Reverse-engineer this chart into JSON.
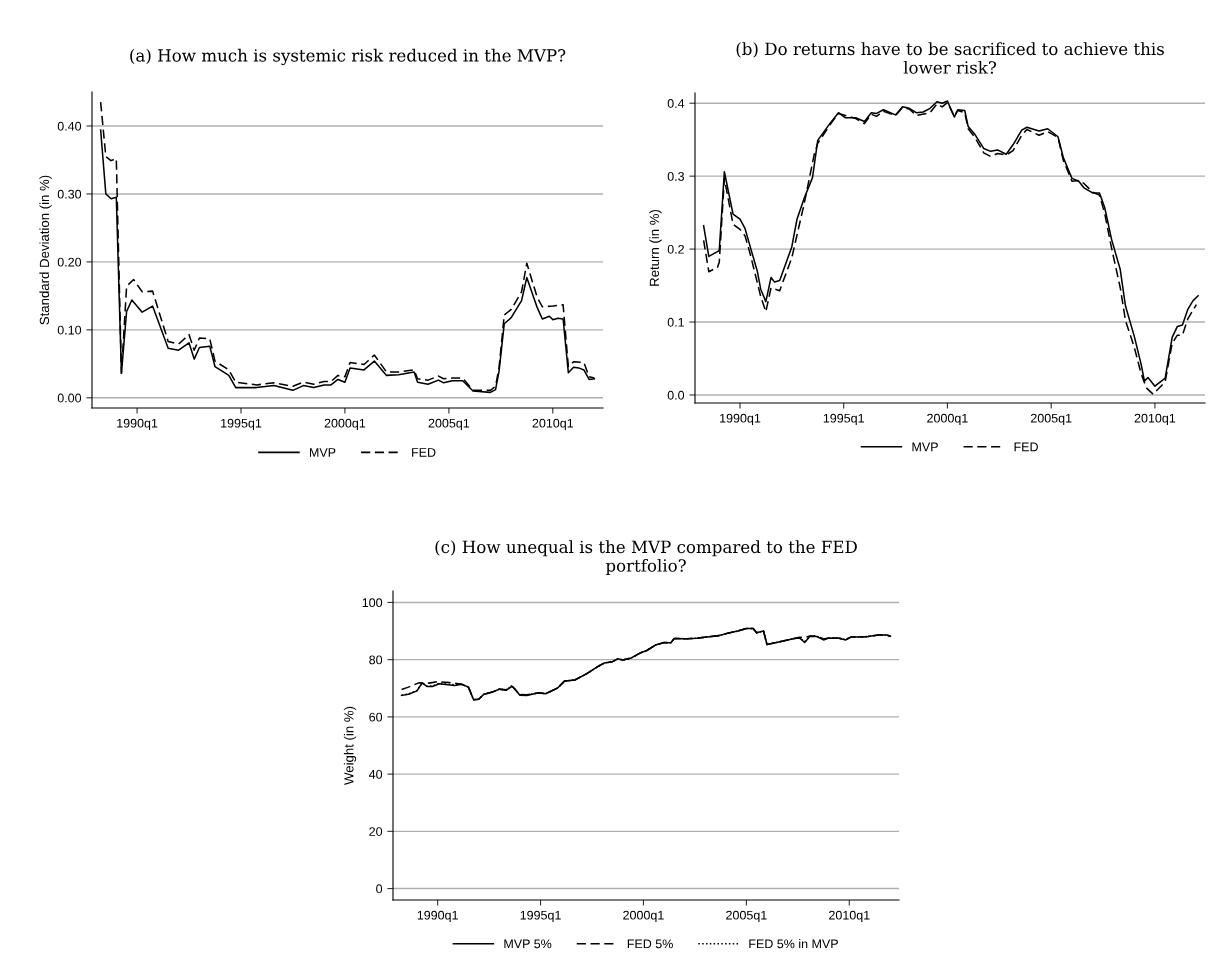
{
  "chart_data": [
    {
      "type": "line",
      "title": "(a) How much is systemic risk reduced in the MVP?",
      "ylabel": "Standard Deviation (in %)",
      "xlim": [
        "1987-11",
        "2012-06"
      ],
      "xticks": [
        {
          "value": "1990-01",
          "label": "1990q1"
        },
        {
          "value": "1995-01",
          "label": "1995q1"
        },
        {
          "value": "2000-01",
          "label": "2000q1"
        },
        {
          "value": "2005-01",
          "label": "2005q1"
        },
        {
          "value": "2010-01",
          "label": "2010q1"
        }
      ],
      "ylim": [
        -0.015,
        0.45
      ],
      "yticks": [
        {
          "value": 0,
          "label": "0.00"
        },
        {
          "value": 0.1,
          "label": "0.10"
        },
        {
          "value": 0.2,
          "label": "0.20"
        },
        {
          "value": 0.3,
          "label": "0.30"
        },
        {
          "value": 0.4,
          "label": "0.40"
        }
      ],
      "grid": "y",
      "legend": "bottom",
      "series": [
        {
          "name": "MVP",
          "color": "#000000",
          "line_style": "solid",
          "x": [
            "1988-04",
            "1988-07",
            "1988-10",
            "1989-01",
            "1989-04",
            "1989-07",
            "1989-10",
            "1990-04",
            "1990-10",
            "1991-07",
            "1992-01",
            "1992-07",
            "1992-10",
            "1993-01",
            "1993-07",
            "1993-10",
            "1994-06",
            "1994-10",
            "1995-10",
            "1996-08",
            "1997-07",
            "1998-01",
            "1998-07",
            "1999-01",
            "1999-05",
            "1999-09",
            "2000-01",
            "2000-04",
            "2000-12",
            "2001-06",
            "2002-01",
            "2002-08",
            "2003-05",
            "2003-07",
            "2004-01",
            "2004-07",
            "2004-10",
            "2005-03",
            "2005-09",
            "2006-03",
            "2007-01",
            "2007-04",
            "2007-06",
            "2007-09",
            "2008-01",
            "2008-07",
            "2008-10",
            "2009-04",
            "2009-07",
            "2009-11",
            "2010-01",
            "2010-04",
            "2010-07",
            "2010-10",
            "2011-01",
            "2011-04",
            "2011-07",
            "2011-10",
            "2012-01"
          ],
          "values": [
            0.394,
            0.3,
            0.293,
            0.295,
            0.036,
            0.127,
            0.144,
            0.126,
            0.135,
            0.073,
            0.07,
            0.081,
            0.057,
            0.074,
            0.076,
            0.046,
            0.033,
            0.015,
            0.015,
            0.018,
            0.011,
            0.018,
            0.015,
            0.019,
            0.019,
            0.027,
            0.023,
            0.044,
            0.041,
            0.054,
            0.033,
            0.034,
            0.038,
            0.023,
            0.02,
            0.026,
            0.022,
            0.025,
            0.025,
            0.01,
            0.008,
            0.012,
            0.039,
            0.109,
            0.118,
            0.143,
            0.177,
            0.133,
            0.116,
            0.12,
            0.115,
            0.117,
            0.116,
            0.037,
            0.045,
            0.044,
            0.041,
            0.027,
            0.028
          ]
        },
        {
          "name": "FED",
          "color": "#000000",
          "line_style": "dashed",
          "x": [
            "1988-04",
            "1988-07",
            "1988-10",
            "1989-01",
            "1989-04",
            "1989-07",
            "1989-11",
            "1990-04",
            "1990-10",
            "1991-07",
            "1992-01",
            "1992-07",
            "1992-10",
            "1993-01",
            "1993-07",
            "1993-10",
            "1994-06",
            "1994-10",
            "1995-10",
            "1996-08",
            "1997-07",
            "1998-01",
            "1998-07",
            "1999-01",
            "1999-05",
            "1999-09",
            "2000-01",
            "2000-04",
            "2000-12",
            "2001-06",
            "2002-01",
            "2002-08",
            "2003-05",
            "2003-07",
            "2004-01",
            "2004-07",
            "2004-10",
            "2005-03",
            "2005-09",
            "2006-03",
            "2007-01",
            "2007-04",
            "2007-06",
            "2007-09",
            "2008-01",
            "2008-07",
            "2008-10",
            "2009-04",
            "2009-07",
            "2010-01",
            "2010-07",
            "2010-10",
            "2011-01",
            "2011-07",
            "2011-10",
            "2012-01"
          ],
          "values": [
            0.435,
            0.355,
            0.349,
            0.352,
            0.036,
            0.164,
            0.174,
            0.156,
            0.157,
            0.083,
            0.079,
            0.093,
            0.07,
            0.088,
            0.087,
            0.054,
            0.041,
            0.023,
            0.019,
            0.022,
            0.017,
            0.023,
            0.02,
            0.024,
            0.024,
            0.033,
            0.031,
            0.052,
            0.049,
            0.063,
            0.038,
            0.038,
            0.041,
            0.028,
            0.026,
            0.032,
            0.028,
            0.029,
            0.029,
            0.011,
            0.011,
            0.017,
            0.044,
            0.122,
            0.13,
            0.156,
            0.198,
            0.148,
            0.134,
            0.135,
            0.137,
            0.046,
            0.053,
            0.052,
            0.031,
            0.029
          ]
        }
      ]
    },
    {
      "type": "line",
      "title": "(b) Do returns have to be sacrificed to achieve this\nlower risk?",
      "ylabel": "Return (in %)",
      "xlim": [
        "1987-11",
        "2012-06"
      ],
      "xticks": [
        {
          "value": "1990-01",
          "label": "1990q1"
        },
        {
          "value": "1995-01",
          "label": "1995q1"
        },
        {
          "value": "2000-01",
          "label": "2000q1"
        },
        {
          "value": "2005-01",
          "label": "2005q1"
        },
        {
          "value": "2010-01",
          "label": "2010q1"
        }
      ],
      "ylim": [
        -0.011,
        0.414
      ],
      "yticks": [
        {
          "value": 0,
          "label": "0.0"
        },
        0.1,
        0.2,
        0.3,
        0.4
      ],
      "grid": "y",
      "legend": "bottom",
      "series": [
        {
          "name": "MVP",
          "color": "#000000",
          "line_style": "solid",
          "x": [
            "1988-04",
            "1988-07",
            "1989-01",
            "1989-04",
            "1989-09",
            "1990-01",
            "1990-04",
            "1990-07",
            "1990-11",
            "1991-01",
            "1991-04",
            "1991-07",
            "1991-09",
            "1991-12",
            "1992-07",
            "1992-10",
            "1993-02",
            "1993-07",
            "1993-10",
            "1994-05",
            "1994-10",
            "1995-02",
            "1995-08",
            "1996-01",
            "1996-05",
            "1996-08",
            "1996-12",
            "1997-07",
            "1997-11",
            "1998-03",
            "1998-07",
            "1998-11",
            "1999-03",
            "1999-07",
            "1999-10",
            "2000-01",
            "2000-05",
            "2000-07",
            "2000-11",
            "2001-01",
            "2001-05",
            "2001-10",
            "2002-02",
            "2002-06",
            "2002-11",
            "2003-03",
            "2003-08",
            "2003-11",
            "2004-06",
            "2004-11",
            "2005-05",
            "2005-08",
            "2006-01",
            "2006-05",
            "2006-08",
            "2007-01",
            "2007-05",
            "2007-08",
            "2007-12",
            "2008-05",
            "2008-08",
            "2009-01",
            "2009-05",
            "2009-07",
            "2009-09",
            "2010-01",
            "2010-07",
            "2010-11",
            "2011-02",
            "2011-05",
            "2011-08",
            "2011-11",
            "2012-02"
          ],
          "values": [
            0.232,
            0.19,
            0.198,
            0.306,
            0.248,
            0.241,
            0.228,
            0.203,
            0.17,
            0.145,
            0.128,
            0.161,
            0.155,
            0.157,
            0.203,
            0.241,
            0.269,
            0.298,
            0.349,
            0.372,
            0.387,
            0.38,
            0.38,
            0.375,
            0.387,
            0.386,
            0.391,
            0.384,
            0.395,
            0.393,
            0.387,
            0.388,
            0.393,
            0.402,
            0.4,
            0.403,
            0.381,
            0.391,
            0.39,
            0.368,
            0.357,
            0.338,
            0.334,
            0.336,
            0.33,
            0.343,
            0.363,
            0.367,
            0.362,
            0.365,
            0.354,
            0.326,
            0.297,
            0.293,
            0.284,
            0.277,
            0.277,
            0.257,
            0.213,
            0.172,
            0.122,
            0.081,
            0.043,
            0.019,
            0.024,
            0.012,
            0.023,
            0.079,
            0.094,
            0.096,
            0.117,
            0.129,
            0.136
          ]
        },
        {
          "name": "FED",
          "color": "#000000",
          "line_style": "dashed",
          "x": [
            "1988-04",
            "1988-07",
            "1988-12",
            "1989-01",
            "1989-04",
            "1989-09",
            "1990-01",
            "1990-04",
            "1990-07",
            "1991-01",
            "1991-04",
            "1991-07",
            "1991-12",
            "1992-07",
            "1993-02",
            "1993-08",
            "1993-10",
            "1994-05",
            "1994-10",
            "1995-08",
            "1996-01",
            "1996-05",
            "1996-08",
            "1996-12",
            "1997-07",
            "1997-11",
            "1998-03",
            "1998-07",
            "1999-03",
            "1999-07",
            "1999-10",
            "2000-01",
            "2000-05",
            "2000-07",
            "2000-11",
            "2001-01",
            "2001-05",
            "2001-10",
            "2002-02",
            "2002-06",
            "2002-11",
            "2003-03",
            "2003-08",
            "2003-11",
            "2004-06",
            "2004-11",
            "2005-05",
            "2005-08",
            "2006-01",
            "2006-05",
            "2006-08",
            "2007-01",
            "2007-05",
            "2007-08",
            "2007-12",
            "2008-05",
            "2008-08",
            "2009-01",
            "2009-05",
            "2009-08",
            "2009-12",
            "2010-07",
            "2010-11",
            "2011-02",
            "2011-05",
            "2011-08",
            "2012-01"
          ],
          "values": [
            0.212,
            0.169,
            0.175,
            0.182,
            0.297,
            0.234,
            0.227,
            0.218,
            0.193,
            0.135,
            0.114,
            0.147,
            0.143,
            0.188,
            0.261,
            0.33,
            0.345,
            0.37,
            0.386,
            0.379,
            0.372,
            0.385,
            0.382,
            0.389,
            0.383,
            0.394,
            0.392,
            0.383,
            0.387,
            0.399,
            0.395,
            0.401,
            0.382,
            0.39,
            0.387,
            0.365,
            0.353,
            0.332,
            0.327,
            0.331,
            0.329,
            0.335,
            0.356,
            0.364,
            0.356,
            0.361,
            0.353,
            0.322,
            0.293,
            0.294,
            0.29,
            0.278,
            0.274,
            0.249,
            0.201,
            0.147,
            0.102,
            0.066,
            0.03,
            0.01,
            0.001,
            0.018,
            0.071,
            0.082,
            0.082,
            0.104,
            0.124
          ]
        }
      ]
    },
    {
      "type": "line",
      "title": "(c) How unequal is the MVP compared to the FED\nportfolio?",
      "ylabel": "Weight (in %)",
      "xlim": [
        "1987-11",
        "2012-06"
      ],
      "xticks": [
        {
          "value": "1990-01",
          "label": "1990q1"
        },
        {
          "value": "1995-01",
          "label": "1995q1"
        },
        {
          "value": "2000-01",
          "label": "2000q1"
        },
        {
          "value": "2005-01",
          "label": "2005q1"
        },
        {
          "value": "2010-01",
          "label": "2010q1"
        }
      ],
      "ylim": [
        -4,
        104
      ],
      "yticks": [
        0,
        20,
        40,
        60,
        80,
        100
      ],
      "grid": "y",
      "legend": "bottom",
      "series": [
        {
          "name": "MVP 5%",
          "color": "#000000",
          "line_style": "solid",
          "x": [
            "1988-04",
            "1988-08",
            "1989-01",
            "1989-04",
            "1989-07",
            "1989-10",
            "1990-02",
            "1990-11",
            "1991-03",
            "1991-07",
            "1991-10",
            "1992-01",
            "1992-04",
            "1992-09",
            "1993-01",
            "1993-05",
            "1993-08",
            "1993-09",
            "1994-01",
            "1994-05",
            "1994-12",
            "1995-04",
            "1995-11",
            "1996-03",
            "1996-09",
            "1997-04",
            "1997-11",
            "1998-02",
            "1998-07",
            "1998-10",
            "1999-01",
            "1999-06",
            "1999-11",
            "2000-03",
            "2000-08",
            "2001-01",
            "2001-05",
            "2001-07",
            "2002-02",
            "2002-08",
            "2003-02",
            "2003-09",
            "2004-02",
            "2004-08",
            "2005-01",
            "2005-05",
            "2005-07",
            "2005-11",
            "2006-01",
            "2006-08",
            "2007-05",
            "2007-08",
            "2007-11",
            "2008-02",
            "2008-06",
            "2008-10",
            "2009-01",
            "2009-07",
            "2009-11",
            "2010-02",
            "2010-06",
            "2010-12",
            "2011-06",
            "2011-11",
            "2012-01"
          ],
          "values": [
            67.5,
            67.9,
            69.1,
            71.9,
            70.6,
            70.6,
            71.6,
            71.0,
            71.4,
            70.4,
            66.0,
            66.2,
            67.9,
            68.7,
            69.7,
            69.3,
            70.6,
            70.4,
            67.6,
            67.5,
            68.4,
            68.1,
            70.1,
            72.5,
            72.9,
            75.1,
            77.8,
            78.8,
            79.3,
            80.3,
            79.9,
            80.6,
            82.3,
            83.2,
            85.1,
            86.0,
            85.9,
            87.4,
            87.3,
            87.5,
            87.9,
            88.4,
            89.2,
            90.0,
            90.9,
            90.9,
            89.4,
            90.0,
            85.3,
            86.2,
            87.4,
            87.6,
            86.0,
            88.1,
            88.1,
            86.9,
            87.6,
            87.5,
            86.9,
            87.9,
            87.9,
            88.1,
            88.6,
            88.6,
            88.2
          ]
        },
        {
          "name": "FED 5%",
          "color": "#000000",
          "line_style": "dashed",
          "x": [
            "1988-04",
            "1988-08",
            "1989-02",
            "1989-08",
            "1990-01",
            "1990-08",
            "1991-03",
            "1991-07",
            "1991-10",
            "1992-01",
            "1992-04",
            "1992-09",
            "1993-01",
            "1993-05",
            "1993-08",
            "1993-09",
            "1994-01",
            "1994-05",
            "1994-12",
            "1995-04",
            "1995-11",
            "1996-03",
            "1996-09",
            "1997-04",
            "1997-11",
            "1998-02",
            "1998-07",
            "1998-10",
            "1999-01",
            "1999-06",
            "1999-11",
            "2000-03",
            "2000-08",
            "2001-01",
            "2001-05",
            "2001-07",
            "2002-02",
            "2002-08",
            "2003-02",
            "2003-09",
            "2004-02",
            "2004-08",
            "2005-01",
            "2005-05",
            "2005-07",
            "2005-11",
            "2006-01",
            "2006-08",
            "2007-05",
            "2007-08",
            "2007-11",
            "2008-02",
            "2008-06",
            "2008-10",
            "2009-01",
            "2009-07",
            "2009-11",
            "2010-02",
            "2010-06",
            "2010-12",
            "2011-06",
            "2011-11",
            "2012-01"
          ],
          "values": [
            69.6,
            70.4,
            71.9,
            71.8,
            72.3,
            72.0,
            71.4,
            70.4,
            66.0,
            66.2,
            67.9,
            68.7,
            69.7,
            69.5,
            70.8,
            70.4,
            67.8,
            67.7,
            68.4,
            68.1,
            70.1,
            72.5,
            72.9,
            75.1,
            77.8,
            78.8,
            79.3,
            80.3,
            79.9,
            80.6,
            82.3,
            83.2,
            85.1,
            86.0,
            85.9,
            87.4,
            87.3,
            87.5,
            87.9,
            88.4,
            89.2,
            90.0,
            90.9,
            90.9,
            89.4,
            90.0,
            85.3,
            86.2,
            87.4,
            87.8,
            87.7,
            88.3,
            88.3,
            87.2,
            87.6,
            87.5,
            87.1,
            87.9,
            87.9,
            88.1,
            88.6,
            88.6,
            88.2
          ]
        },
        {
          "name": "FED 5% in MVP",
          "color": "#000000",
          "line_style": "dotted",
          "x": [
            "1988-04",
            "1988-08",
            "1989-01",
            "1989-04",
            "1989-07",
            "1989-10",
            "1990-02",
            "1990-11",
            "1991-03",
            "1991-07",
            "1991-10",
            "1992-01",
            "1992-04",
            "1992-09",
            "1993-01",
            "1993-05",
            "1993-08",
            "1993-09",
            "1994-01",
            "1994-05",
            "1994-12",
            "1995-04",
            "1995-11",
            "1996-03",
            "1996-09",
            "1997-04",
            "1997-11",
            "1998-02",
            "1998-07",
            "1998-10",
            "1999-01",
            "1999-06",
            "1999-11",
            "2000-03",
            "2000-08",
            "2001-01",
            "2001-05",
            "2001-07",
            "2002-02",
            "2002-08",
            "2003-02",
            "2003-09",
            "2004-02",
            "2004-08",
            "2005-01",
            "2005-05",
            "2005-07",
            "2005-11",
            "2006-01",
            "2006-08",
            "2007-05",
            "2007-08",
            "2007-11",
            "2008-02",
            "2008-06",
            "2008-10",
            "2009-01",
            "2009-07",
            "2009-11",
            "2010-02",
            "2010-06",
            "2010-12",
            "2011-06",
            "2011-11",
            "2012-01"
          ],
          "values": [
            67.6,
            68.0,
            69.2,
            71.9,
            70.7,
            70.8,
            71.8,
            71.2,
            71.4,
            70.4,
            66.0,
            66.2,
            67.9,
            68.7,
            69.7,
            69.4,
            70.7,
            70.4,
            67.7,
            67.6,
            68.4,
            68.1,
            70.1,
            72.5,
            72.9,
            75.1,
            77.8,
            78.8,
            79.3,
            80.3,
            79.9,
            80.6,
            82.3,
            83.2,
            85.1,
            86.0,
            85.9,
            87.4,
            87.3,
            87.5,
            87.9,
            88.4,
            89.2,
            90.0,
            90.9,
            90.9,
            89.4,
            90.0,
            85.3,
            86.2,
            87.4,
            87.7,
            86.3,
            88.2,
            88.2,
            87.1,
            87.6,
            87.5,
            87.0,
            87.9,
            87.9,
            88.1,
            88.6,
            88.6,
            88.2
          ]
        }
      ]
    }
  ]
}
